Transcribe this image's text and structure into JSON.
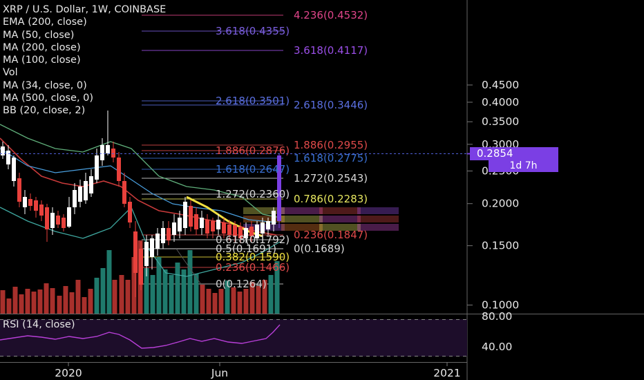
{
  "legend": {
    "symbol_line": "XRP / U.S. Dollar, 1W, COINBASE",
    "items": [
      "EMA (200, close)",
      "MA (50, close)",
      "MA (200, close)",
      "MA (100, close)",
      "Vol",
      "MA (34, close, 0)",
      "MA (500, close, 0)",
      "BB (20, close, 2)"
    ]
  },
  "current_price": "0.2854",
  "countdown": "1d 7h",
  "rsi_label": "RSI (14, close)",
  "colors": {
    "background": "#000000",
    "up_candle": "#ffffff",
    "down_candle": "#e8413c",
    "up_volume": "#1f7a6c",
    "down_volume": "#a8302c",
    "accent": "#7b3fe4",
    "text": "#e8e8e8"
  },
  "chart_data": {
    "type": "candlestick",
    "title": "XRP / U.S. Dollar, 1W, COINBASE",
    "y_axis": {
      "scale": "log",
      "ticks": [
        "0.4500",
        "0.4000",
        "0.3500",
        "0.3000",
        "0.2500",
        "0.2000",
        "0.1500",
        "0.1000"
      ]
    },
    "x_axis": {
      "ticks": [
        "2020",
        "Jun",
        "2021"
      ]
    },
    "rsi": {
      "ticks": [
        "80.00",
        "40.00"
      ]
    },
    "fib_levels": [
      {
        "label": "4.236(0.4532)",
        "color": "#e0458a"
      },
      {
        "label": "3.618(0.4355)",
        "color": "#7b5fe0"
      },
      {
        "label": "3.618(0.4117)",
        "color": "#9b4fe8"
      },
      {
        "label": "2.618(0.3501)",
        "color": "#5a6fe0"
      },
      {
        "label": "2.618(0.3446)",
        "color": "#5a6fe0"
      },
      {
        "label": "1.886(0.2955)",
        "color": "#e04a4a"
      },
      {
        "label": "1.886(0.2876)",
        "color": "#e04a4a"
      },
      {
        "label": "1.618(0.2775)",
        "color": "#3a6fd0"
      },
      {
        "label": "1.618(0.2647)",
        "color": "#3a6fd0"
      },
      {
        "label": "1.272(0.2543)",
        "color": "#d8d8d8"
      },
      {
        "label": "1.272(0.2360)",
        "color": "#d8d8d8"
      },
      {
        "label": "0.786(0.2283)",
        "color": "#e8e860"
      },
      {
        "label": "0.618(0.1792)",
        "color": "#d8d8d8"
      },
      {
        "label": "0.5(0.1691)",
        "color": "#d8d8d8"
      },
      {
        "label": "0(0.1689)",
        "color": "#d8d8d8"
      },
      {
        "label": "0.382(0.1590)",
        "color": "#f0e040"
      },
      {
        "label": "0.236(0.1466)",
        "color": "#e04a4a"
      },
      {
        "label": "0.236(0.1847)",
        "color": "#e04a4a"
      },
      {
        "label": "0(0.1264)",
        "color": "#cfcfcf"
      }
    ]
  }
}
